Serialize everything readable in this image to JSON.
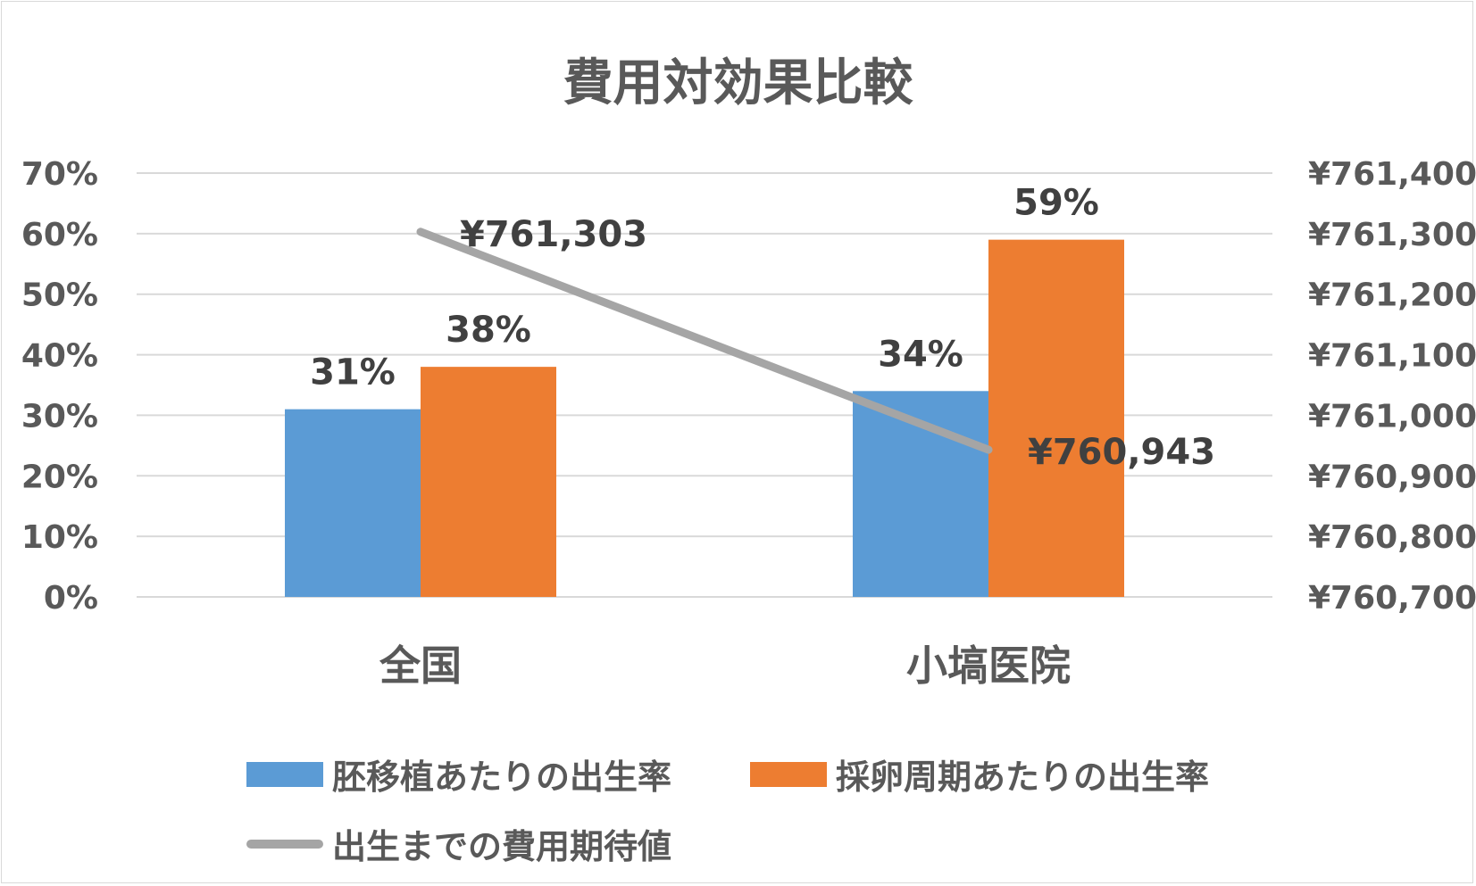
{
  "chart_data": {
    "type": "bar",
    "title": "費用対効果比較",
    "categories": [
      "全国",
      "小塙医院"
    ],
    "series": [
      {
        "name": "胚移植あたりの出生率",
        "type": "bar",
        "axis": "left",
        "values": [
          0.31,
          0.34
        ],
        "labels": [
          "31%",
          "34%"
        ],
        "color": "#5b9bd5"
      },
      {
        "name": "採卵周期あたりの出生率",
        "type": "bar",
        "axis": "left",
        "values": [
          0.38,
          0.59
        ],
        "labels": [
          "38%",
          "59%"
        ],
        "color": "#ed7d31"
      },
      {
        "name": "出生までの費用期待値",
        "type": "line",
        "axis": "right",
        "values": [
          761303,
          760943
        ],
        "labels": [
          "¥761,303",
          "¥760,943"
        ],
        "color": "#a5a5a5"
      }
    ],
    "yleft": {
      "lim": [
        0,
        0.7
      ],
      "ticks": [
        0,
        0.1,
        0.2,
        0.3,
        0.4,
        0.5,
        0.6,
        0.7
      ],
      "tick_labels": [
        "0%",
        "10%",
        "20%",
        "30%",
        "40%",
        "50%",
        "60%",
        "70%"
      ]
    },
    "yright": {
      "lim": [
        760700,
        761400
      ],
      "ticks": [
        760700,
        760800,
        760900,
        761000,
        761100,
        761200,
        761300,
        761400
      ],
      "tick_labels": [
        "¥760,700",
        "¥760,800",
        "¥760,900",
        "¥761,000",
        "¥761,100",
        "¥761,200",
        "¥761,300",
        "¥761,400"
      ]
    },
    "grid": true,
    "legend_position": "bottom"
  }
}
